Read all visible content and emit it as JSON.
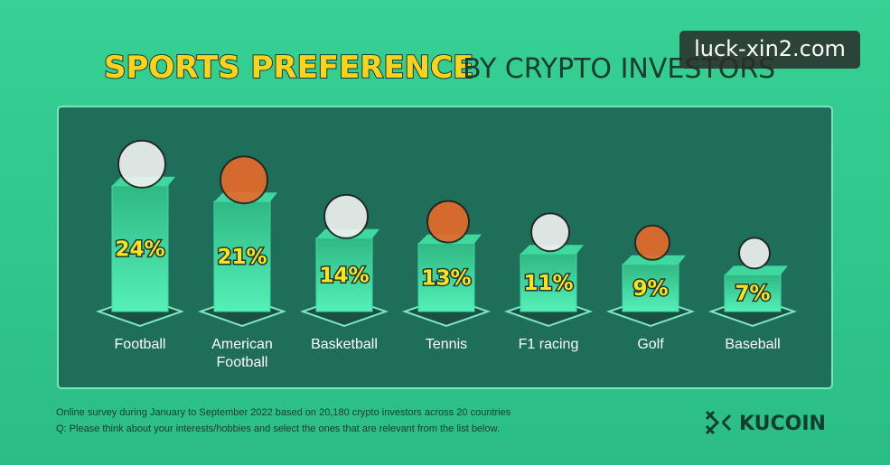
{
  "chart_data": {
    "type": "bar",
    "title_highlight": "SPORTS PREFERENCE",
    "title_rest": "BY CRYPTO INVESTORS",
    "categories": [
      "Football",
      "American Football",
      "Basketball",
      "Tennis",
      "F1 racing",
      "Golf",
      "Baseball"
    ],
    "values": [
      24,
      21,
      14,
      13,
      11,
      9,
      7
    ],
    "value_labels": [
      "24%",
      "21%",
      "14%",
      "13%",
      "11%",
      "9%",
      "7%"
    ],
    "color": "#3fd9a0",
    "notes": [
      "Online survey during January to September 2022 based on 20,180 crypto investors across 20 countries",
      "Q: Please think about your interests/hobbies and select the ones that are relevant from the list below."
    ],
    "brand": "KUCOIN",
    "watermark": "luck-xin2.com"
  }
}
